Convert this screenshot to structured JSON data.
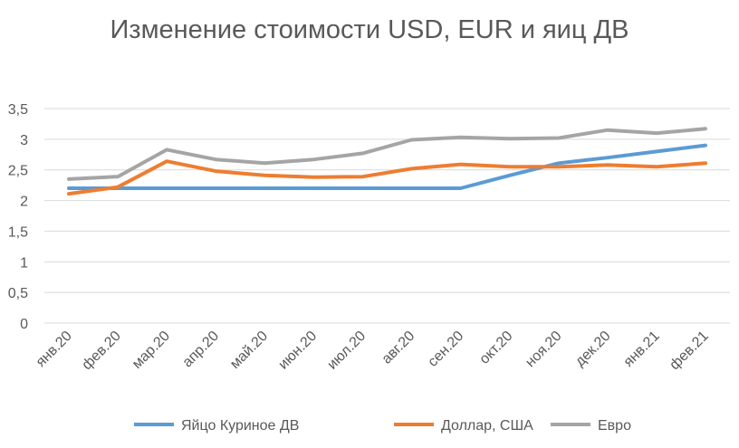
{
  "chart_data": {
    "type": "line",
    "title": "Изменение стоимости USD, EUR и яиц ДВ",
    "xlabel": "",
    "ylabel": "",
    "ylim": [
      0,
      3.5
    ],
    "yticks": [
      "0",
      "0,5",
      "1",
      "1,5",
      "2",
      "2,5",
      "3",
      "3,5"
    ],
    "categories": [
      "янв.20",
      "фев.20",
      "мар.20",
      "апр.20",
      "май.20",
      "июн.20",
      "июл.20",
      "авг.20",
      "сен.20",
      "окт.20",
      "ноя.20",
      "дек.20",
      "янв.21",
      "фев.21"
    ],
    "grid": true,
    "legend_position": "bottom",
    "series": [
      {
        "name": "Яйцо Куриное ДВ",
        "color": "#5b9bd5",
        "values": [
          2.2,
          2.2,
          2.2,
          2.2,
          2.2,
          2.2,
          2.2,
          2.2,
          2.2,
          2.41,
          2.61,
          2.7,
          2.8,
          2.9
        ]
      },
      {
        "name": "Доллар, США",
        "color": "#ed7d31",
        "values": [
          2.11,
          2.22,
          2.64,
          2.48,
          2.41,
          2.38,
          2.39,
          2.52,
          2.59,
          2.55,
          2.55,
          2.58,
          2.55,
          2.61
        ]
      },
      {
        "name": "Евро",
        "color": "#a5a5a5",
        "values": [
          2.35,
          2.39,
          2.83,
          2.67,
          2.61,
          2.67,
          2.77,
          2.99,
          3.03,
          3.01,
          3.02,
          3.15,
          3.1,
          3.17
        ]
      }
    ]
  }
}
